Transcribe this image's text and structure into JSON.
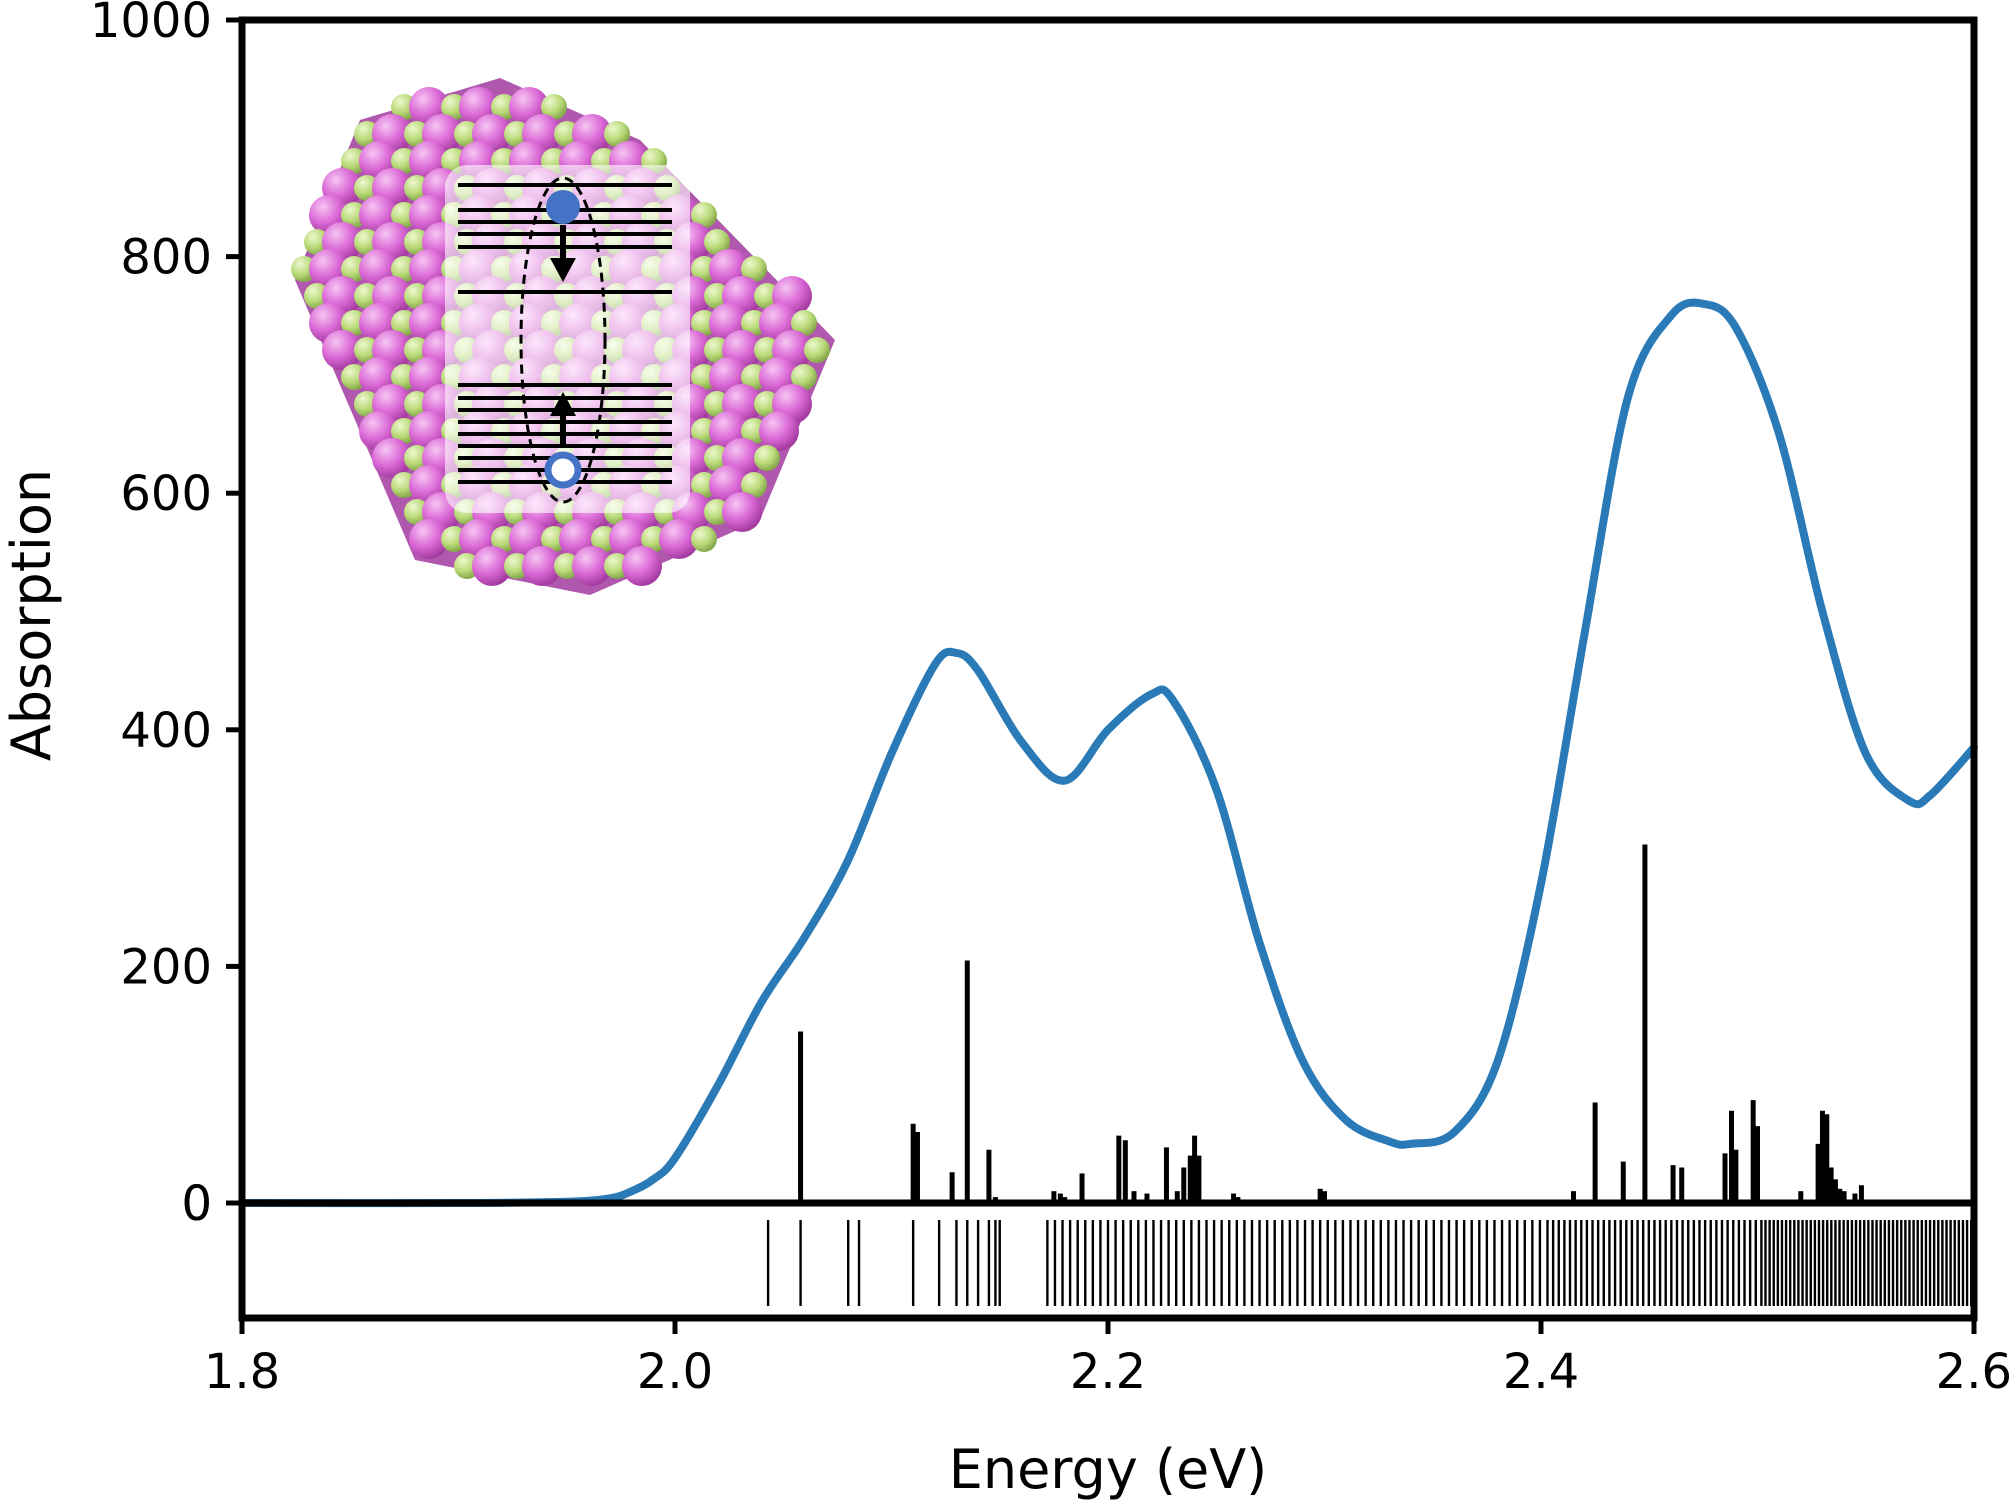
{
  "chart_data": {
    "type": "line",
    "xlabel": "Energy (eV)",
    "ylabel": "Absorption",
    "xlim": [
      1.8,
      2.6
    ],
    "ylim": [
      0,
      1000
    ],
    "lower_panel_ylim": [
      -100,
      0
    ],
    "x_ticks": [
      "1.8",
      "2.0",
      "2.2",
      "2.4",
      "2.6"
    ],
    "y_ticks": [
      "0",
      "200",
      "400",
      "600",
      "800",
      "1000"
    ],
    "series": [
      {
        "color": "#2a7ab8",
        "x": [
          1.8,
          1.9,
          1.95,
          1.97,
          1.98,
          1.99,
          2.0,
          2.02,
          2.04,
          2.06,
          2.08,
          2.1,
          2.12,
          2.13,
          2.14,
          2.16,
          2.18,
          2.2,
          2.22,
          2.23,
          2.25,
          2.27,
          2.29,
          2.31,
          2.33,
          2.34,
          2.36,
          2.38,
          2.4,
          2.42,
          2.44,
          2.46,
          2.475,
          2.49,
          2.51,
          2.53,
          2.55,
          2.57,
          2.58,
          2.6
        ],
        "y": [
          0,
          0,
          1,
          4,
          10,
          20,
          38,
          100,
          170,
          225,
          290,
          380,
          455,
          465,
          450,
          390,
          357,
          400,
          430,
          425,
          350,
          220,
          120,
          70,
          52,
          50,
          60,
          120,
          270,
          480,
          680,
          750,
          760,
          740,
          650,
          500,
          380,
          340,
          345,
          385
        ]
      }
    ],
    "stick_spectrum": {
      "color": "#000000",
      "x": [
        2.058,
        2.11,
        2.112,
        2.128,
        2.135,
        2.145,
        2.148,
        2.175,
        2.178,
        2.18,
        2.188,
        2.205,
        2.208,
        2.212,
        2.218,
        2.227,
        2.232,
        2.235,
        2.238,
        2.24,
        2.242,
        2.258,
        2.26,
        2.298,
        2.3,
        2.415,
        2.425,
        2.438,
        2.448,
        2.461,
        2.465,
        2.485,
        2.488,
        2.49,
        2.498,
        2.5,
        2.52,
        2.528,
        2.53,
        2.532,
        2.534,
        2.536,
        2.538,
        2.54,
        2.545,
        2.548
      ],
      "y": [
        145,
        67,
        60,
        26,
        205,
        45,
        5,
        10,
        8,
        5,
        25,
        57,
        53,
        10,
        8,
        47,
        10,
        30,
        40,
        57,
        40,
        8,
        5,
        12,
        10,
        10,
        85,
        35,
        303,
        32,
        30,
        42,
        78,
        45,
        87,
        65,
        10,
        50,
        78,
        75,
        30,
        20,
        12,
        10,
        8,
        15
      ]
    },
    "transition_lines": {
      "color": "#000000",
      "x_start": 2.043,
      "x_end": 2.6,
      "x_listed": [
        2.043,
        2.058,
        2.08,
        2.085,
        2.11,
        2.122,
        2.13,
        2.135,
        2.14,
        2.145,
        2.148,
        2.15
      ]
    }
  }
}
